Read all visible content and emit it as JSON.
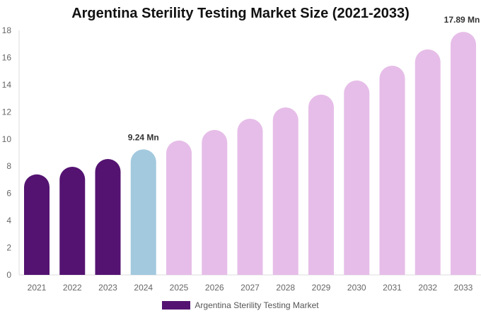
{
  "chart_data": {
    "type": "bar",
    "title": "Argentina Sterility Testing Market Size (2021-2033)",
    "categories": [
      "2021",
      "2022",
      "2023",
      "2024",
      "2025",
      "2026",
      "2027",
      "2028",
      "2029",
      "2030",
      "2031",
      "2032",
      "2033"
    ],
    "series": [
      {
        "name": "Argentina Sterility Testing Market",
        "values": [
          7.4,
          7.96,
          8.53,
          9.24,
          9.89,
          10.67,
          11.5,
          12.33,
          13.27,
          14.31,
          15.4,
          16.6,
          17.89
        ]
      }
    ],
    "data_labels": {
      "2024": "9.24 Mn",
      "2033": "17.89 Mn"
    },
    "ylim": [
      0,
      18
    ],
    "yticks": [
      0,
      2,
      4,
      6,
      8,
      10,
      12,
      14,
      16,
      18
    ],
    "grid": false,
    "legend": "bottom",
    "colors": {
      "historical": "#541371",
      "base_year": "#a3c9de",
      "forecast": "#e6bde8"
    }
  }
}
